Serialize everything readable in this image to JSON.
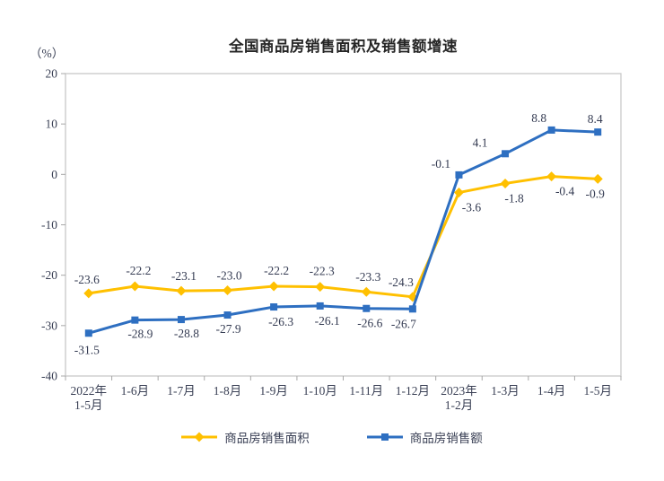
{
  "chart_data": {
    "type": "line",
    "title": "全国商品房销售面积及销售额增速",
    "unit_label": "（%）",
    "xlabel": "",
    "ylabel": "(%)",
    "grid": false,
    "legend_position": "bottom",
    "categories": [
      [
        "2022年",
        "1-5月"
      ],
      [
        "1-6月"
      ],
      [
        "1-7月"
      ],
      [
        "1-8月"
      ],
      [
        "1-9月"
      ],
      [
        "1-10月"
      ],
      [
        "1-11月"
      ],
      [
        "1-12月"
      ],
      [
        "2023年",
        "1-2月"
      ],
      [
        "1-3月"
      ],
      [
        "1-4月"
      ],
      [
        "1-5月"
      ]
    ],
    "y_axis": {
      "min": -40,
      "max": 20,
      "tick_step": 10,
      "ticks": [
        20,
        10,
        0,
        -10,
        -20,
        -30,
        -40
      ]
    },
    "series": [
      {
        "name": "商品房销售面积",
        "color": "#FFC000",
        "marker": "diamond",
        "values": [
          -23.6,
          -22.2,
          -23.1,
          -23.0,
          -22.2,
          -22.3,
          -23.3,
          -24.3,
          -3.6,
          -1.8,
          -0.4,
          -0.9
        ],
        "label_offsets": [
          [
            -2,
            -11
          ],
          [
            4,
            -13
          ],
          [
            3,
            -12
          ],
          [
            2,
            -12
          ],
          [
            3,
            -13
          ],
          [
            2,
            -13
          ],
          [
            2,
            -12
          ],
          [
            -13,
            -12
          ],
          [
            14,
            21
          ],
          [
            10,
            21
          ],
          [
            15,
            21
          ],
          [
            -3,
            21
          ]
        ]
      },
      {
        "name": "商品房销售额",
        "color": "#2E6FC1",
        "marker": "square",
        "values": [
          -31.5,
          -28.9,
          -28.8,
          -27.9,
          -26.3,
          -26.1,
          -26.6,
          -26.7,
          -0.1,
          4.1,
          8.8,
          8.4
        ],
        "label_offsets": [
          [
            -2,
            23
          ],
          [
            6,
            20
          ],
          [
            6,
            20
          ],
          [
            1,
            20
          ],
          [
            8,
            21
          ],
          [
            8,
            21
          ],
          [
            4,
            21
          ],
          [
            -10,
            21
          ],
          [
            -20,
            -8
          ],
          [
            -28,
            -8
          ],
          [
            -14,
            -9
          ],
          [
            -3,
            -10
          ]
        ]
      }
    ]
  },
  "colors": {
    "background": "#ffffff",
    "frame": "#c8c8c8",
    "tick": "#a8a8a8",
    "text": "#3a4055",
    "title_text": "#262626"
  }
}
